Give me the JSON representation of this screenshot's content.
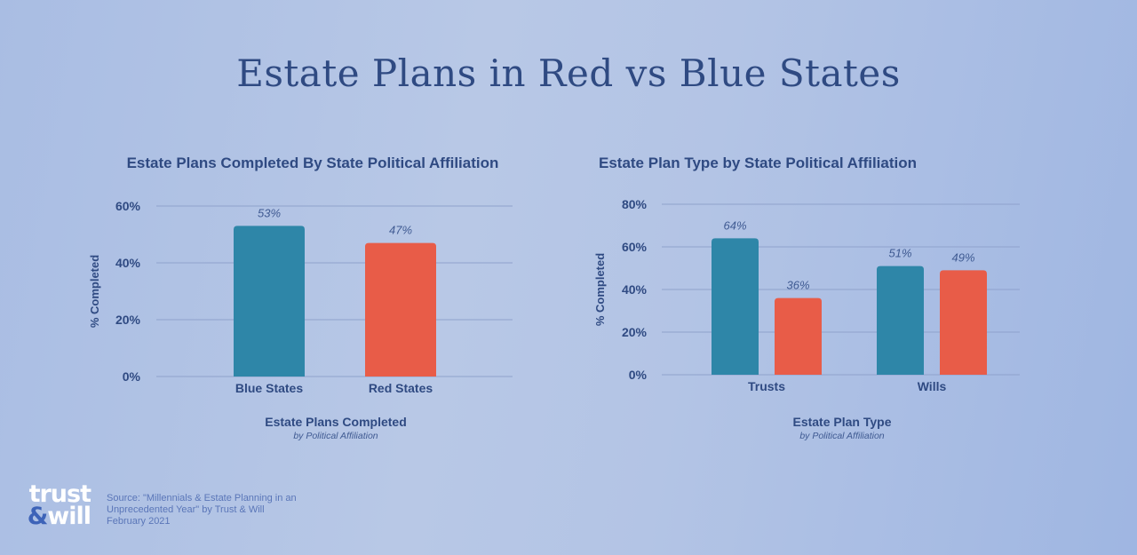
{
  "title": "Estate Plans in Red vs Blue States",
  "colors": {
    "blue": "#2e86a8",
    "red": "#e85c48",
    "text": "#2f4a82",
    "grid": "#8fa2cc"
  },
  "chart_data": [
    {
      "type": "bar",
      "title": "Estate Plans Completed By State Political Affiliation",
      "ylabel": "% Completed",
      "xlabel": "Estate Plans Completed",
      "xsublabel": "by Political Affiliation",
      "categories": [
        "Blue States",
        "Red States"
      ],
      "values": [
        53,
        47
      ],
      "data_labels": [
        "53%",
        "47%"
      ],
      "bar_colors": [
        "blue",
        "red"
      ],
      "ylim": [
        0,
        60
      ],
      "yticks": [
        "0%",
        "20%",
        "40%",
        "60%"
      ],
      "grid": true
    },
    {
      "type": "bar",
      "title": "Estate Plan Type by State Political Affiliation",
      "ylabel": "% Completed",
      "xlabel": "Estate Plan Type",
      "xsublabel": "by Political Affiliation",
      "categories": [
        "Trusts",
        "Wills"
      ],
      "series": [
        {
          "color": "blue",
          "values": [
            64,
            51
          ],
          "data_labels": [
            "64%",
            "51%"
          ]
        },
        {
          "color": "red",
          "values": [
            36,
            49
          ],
          "data_labels": [
            "36%",
            "49%"
          ]
        }
      ],
      "ylim": [
        0,
        80
      ],
      "yticks": [
        "0%",
        "20%",
        "40%",
        "60%",
        "80%"
      ],
      "grid": true
    }
  ],
  "logo": {
    "line1": "trust",
    "amp": "&",
    "line2": "will"
  },
  "source": {
    "line1": "Source: \"Millennials & Estate Planning in an",
    "line2": "Unprecedented Year\" by Trust & Will",
    "line3": "February 2021"
  }
}
